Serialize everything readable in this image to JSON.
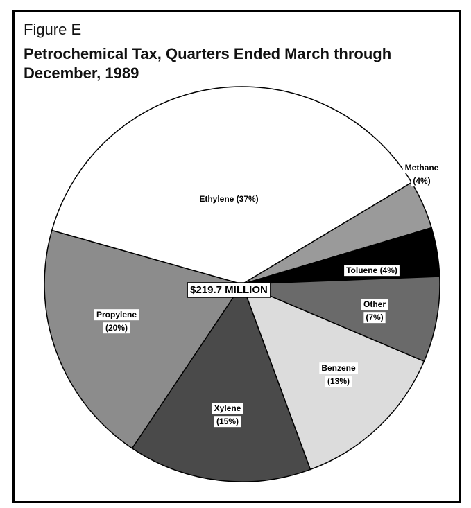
{
  "chart_data": {
    "type": "pie",
    "figure_label": "Figure E",
    "title": "Petrochemical Tax, Quarters Ended March through December, 1989",
    "center_label": "$219.7 MILLION",
    "categories": [
      "Methane",
      "Toluene",
      "Other",
      "Benzene",
      "Xylene",
      "Propylene",
      "Ethylene"
    ],
    "values": [
      4,
      4,
      7,
      13,
      15,
      20,
      37
    ],
    "value_labels": [
      "(4%)",
      "(4%)",
      "(7%)",
      "(13%)",
      "(15%)",
      "(20%)",
      "(37%)"
    ],
    "colors": [
      "#9a9a9a",
      "#000000",
      "#6a6a6a",
      "#dcdcdc",
      "#4a4a4a",
      "#8c8c8c",
      "#ffffff"
    ]
  }
}
